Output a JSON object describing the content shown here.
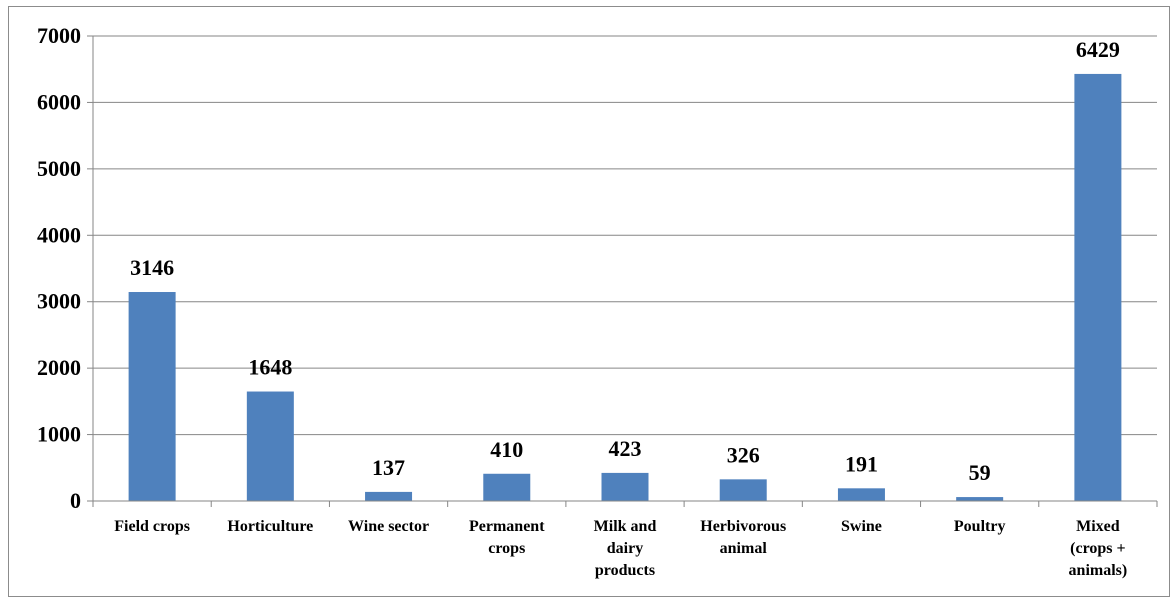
{
  "chart_data": {
    "type": "bar",
    "categories": [
      [
        "Field crops"
      ],
      [
        "Horticulture"
      ],
      [
        "Wine sector"
      ],
      [
        "Permanent",
        "crops"
      ],
      [
        "Milk and",
        "dairy",
        "products"
      ],
      [
        "Herbivorous",
        "animal"
      ],
      [
        "Swine"
      ],
      [
        "Poultry"
      ],
      [
        "Mixed",
        "(crops +",
        "animals)"
      ]
    ],
    "values": [
      3146,
      1648,
      137,
      410,
      423,
      326,
      191,
      59,
      6429
    ],
    "data_labels": [
      "3146",
      "1648",
      "137",
      "410",
      "423",
      "326",
      "191",
      "59",
      "6429"
    ],
    "title": "",
    "xlabel": "",
    "ylabel": "",
    "ylim": [
      0,
      7000
    ],
    "yticks": [
      0,
      1000,
      2000,
      3000,
      4000,
      5000,
      6000,
      7000
    ],
    "ytick_labels": [
      "0",
      "1000",
      "2000",
      "3000",
      "4000",
      "5000",
      "6000",
      "7000"
    ],
    "grid": true,
    "legend": "none",
    "colors": {
      "bar": "#4f81bd",
      "grid": "#868686",
      "axis": "#868686"
    }
  }
}
